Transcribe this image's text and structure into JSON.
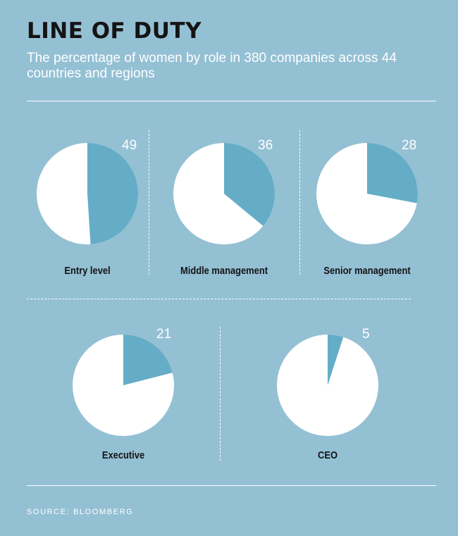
{
  "title": "LINE OF DUTY",
  "subtitle": "The percentage of women by role in 380 companies across 44 countries and regions",
  "source": "SOURCE: BLOOMBERG",
  "colors": {
    "background": "#94c0d4",
    "slice": "#65adc7",
    "remainder": "#ffffff"
  },
  "chart_data": {
    "type": "pie",
    "unit": "percent",
    "charts": [
      {
        "label": "Entry level",
        "value": 49
      },
      {
        "label": "Middle management",
        "value": 36
      },
      {
        "label": "Senior management",
        "value": 28
      },
      {
        "label": "Executive",
        "value": 21
      },
      {
        "label": "CEO",
        "value": 5
      }
    ]
  }
}
